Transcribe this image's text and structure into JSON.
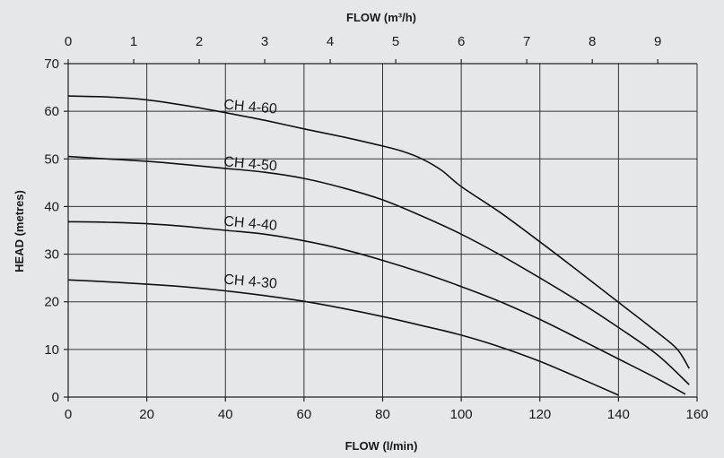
{
  "chart_data": {
    "type": "line",
    "x_top_label": "FLOW (m³/h)",
    "x_bottom_label": "FLOW (l/min)",
    "y_label": "HEAD (metres)",
    "x_bottom_ticks": [
      "0",
      "20",
      "40",
      "60",
      "80",
      "100",
      "120",
      "140",
      "160"
    ],
    "x_top_ticks": [
      "0",
      "1",
      "2",
      "3",
      "4",
      "5",
      "6",
      "7",
      "8",
      "9"
    ],
    "y_ticks": [
      "0",
      "10",
      "20",
      "30",
      "40",
      "50",
      "60",
      "70"
    ],
    "xlim": [
      0,
      160
    ],
    "ylim": [
      0,
      70
    ],
    "top_xlim_m3h": [
      0,
      9.6
    ],
    "grid": true,
    "series": [
      {
        "name": "CH 4-60",
        "x": [
          0,
          10,
          20,
          30,
          40,
          50,
          60,
          70,
          80,
          85,
          90,
          95,
          100,
          110,
          120,
          130,
          140,
          150,
          155,
          158
        ],
        "y": [
          63.2,
          63.0,
          62.4,
          61.2,
          59.7,
          58.1,
          56.3,
          54.6,
          52.7,
          51.6,
          50.0,
          47.6,
          44.2,
          38.7,
          32.6,
          26.3,
          19.9,
          13.5,
          10.0,
          6.0
        ]
      },
      {
        "name": "CH 4-50",
        "x": [
          0,
          10,
          20,
          30,
          40,
          50,
          60,
          70,
          80,
          90,
          100,
          110,
          120,
          130,
          140,
          150,
          158
        ],
        "y": [
          50.5,
          50.0,
          49.5,
          48.8,
          48.0,
          47.2,
          45.9,
          43.9,
          41.4,
          38.0,
          34.2,
          29.8,
          25.0,
          20.0,
          14.6,
          8.8,
          2.6
        ]
      },
      {
        "name": "CH 4-40",
        "x": [
          0,
          10,
          20,
          30,
          40,
          50,
          60,
          70,
          80,
          90,
          100,
          110,
          120,
          130,
          140,
          150,
          157
        ],
        "y": [
          36.8,
          36.7,
          36.4,
          35.8,
          35.0,
          34.2,
          32.8,
          31.0,
          28.7,
          26.1,
          23.2,
          20.0,
          16.3,
          12.2,
          8.0,
          3.8,
          0.6
        ]
      },
      {
        "name": "CH 4-30",
        "x": [
          0,
          10,
          20,
          30,
          40,
          50,
          60,
          70,
          80,
          90,
          100,
          110,
          120,
          130,
          140
        ],
        "y": [
          24.6,
          24.2,
          23.7,
          23.1,
          22.3,
          21.3,
          20.1,
          18.6,
          16.9,
          15.0,
          13.0,
          10.5,
          7.5,
          4.0,
          0.4
        ]
      }
    ],
    "curve_labels": [
      {
        "text": "CH 4-60",
        "x": 39.5,
        "y": 60.5
      },
      {
        "text": "CH 4-50",
        "x": 39.5,
        "y": 48.5
      },
      {
        "text": "CH 4-40",
        "x": 39.5,
        "y": 36.0
      },
      {
        "text": "CH 4-30",
        "x": 39.5,
        "y": 23.8
      }
    ]
  }
}
